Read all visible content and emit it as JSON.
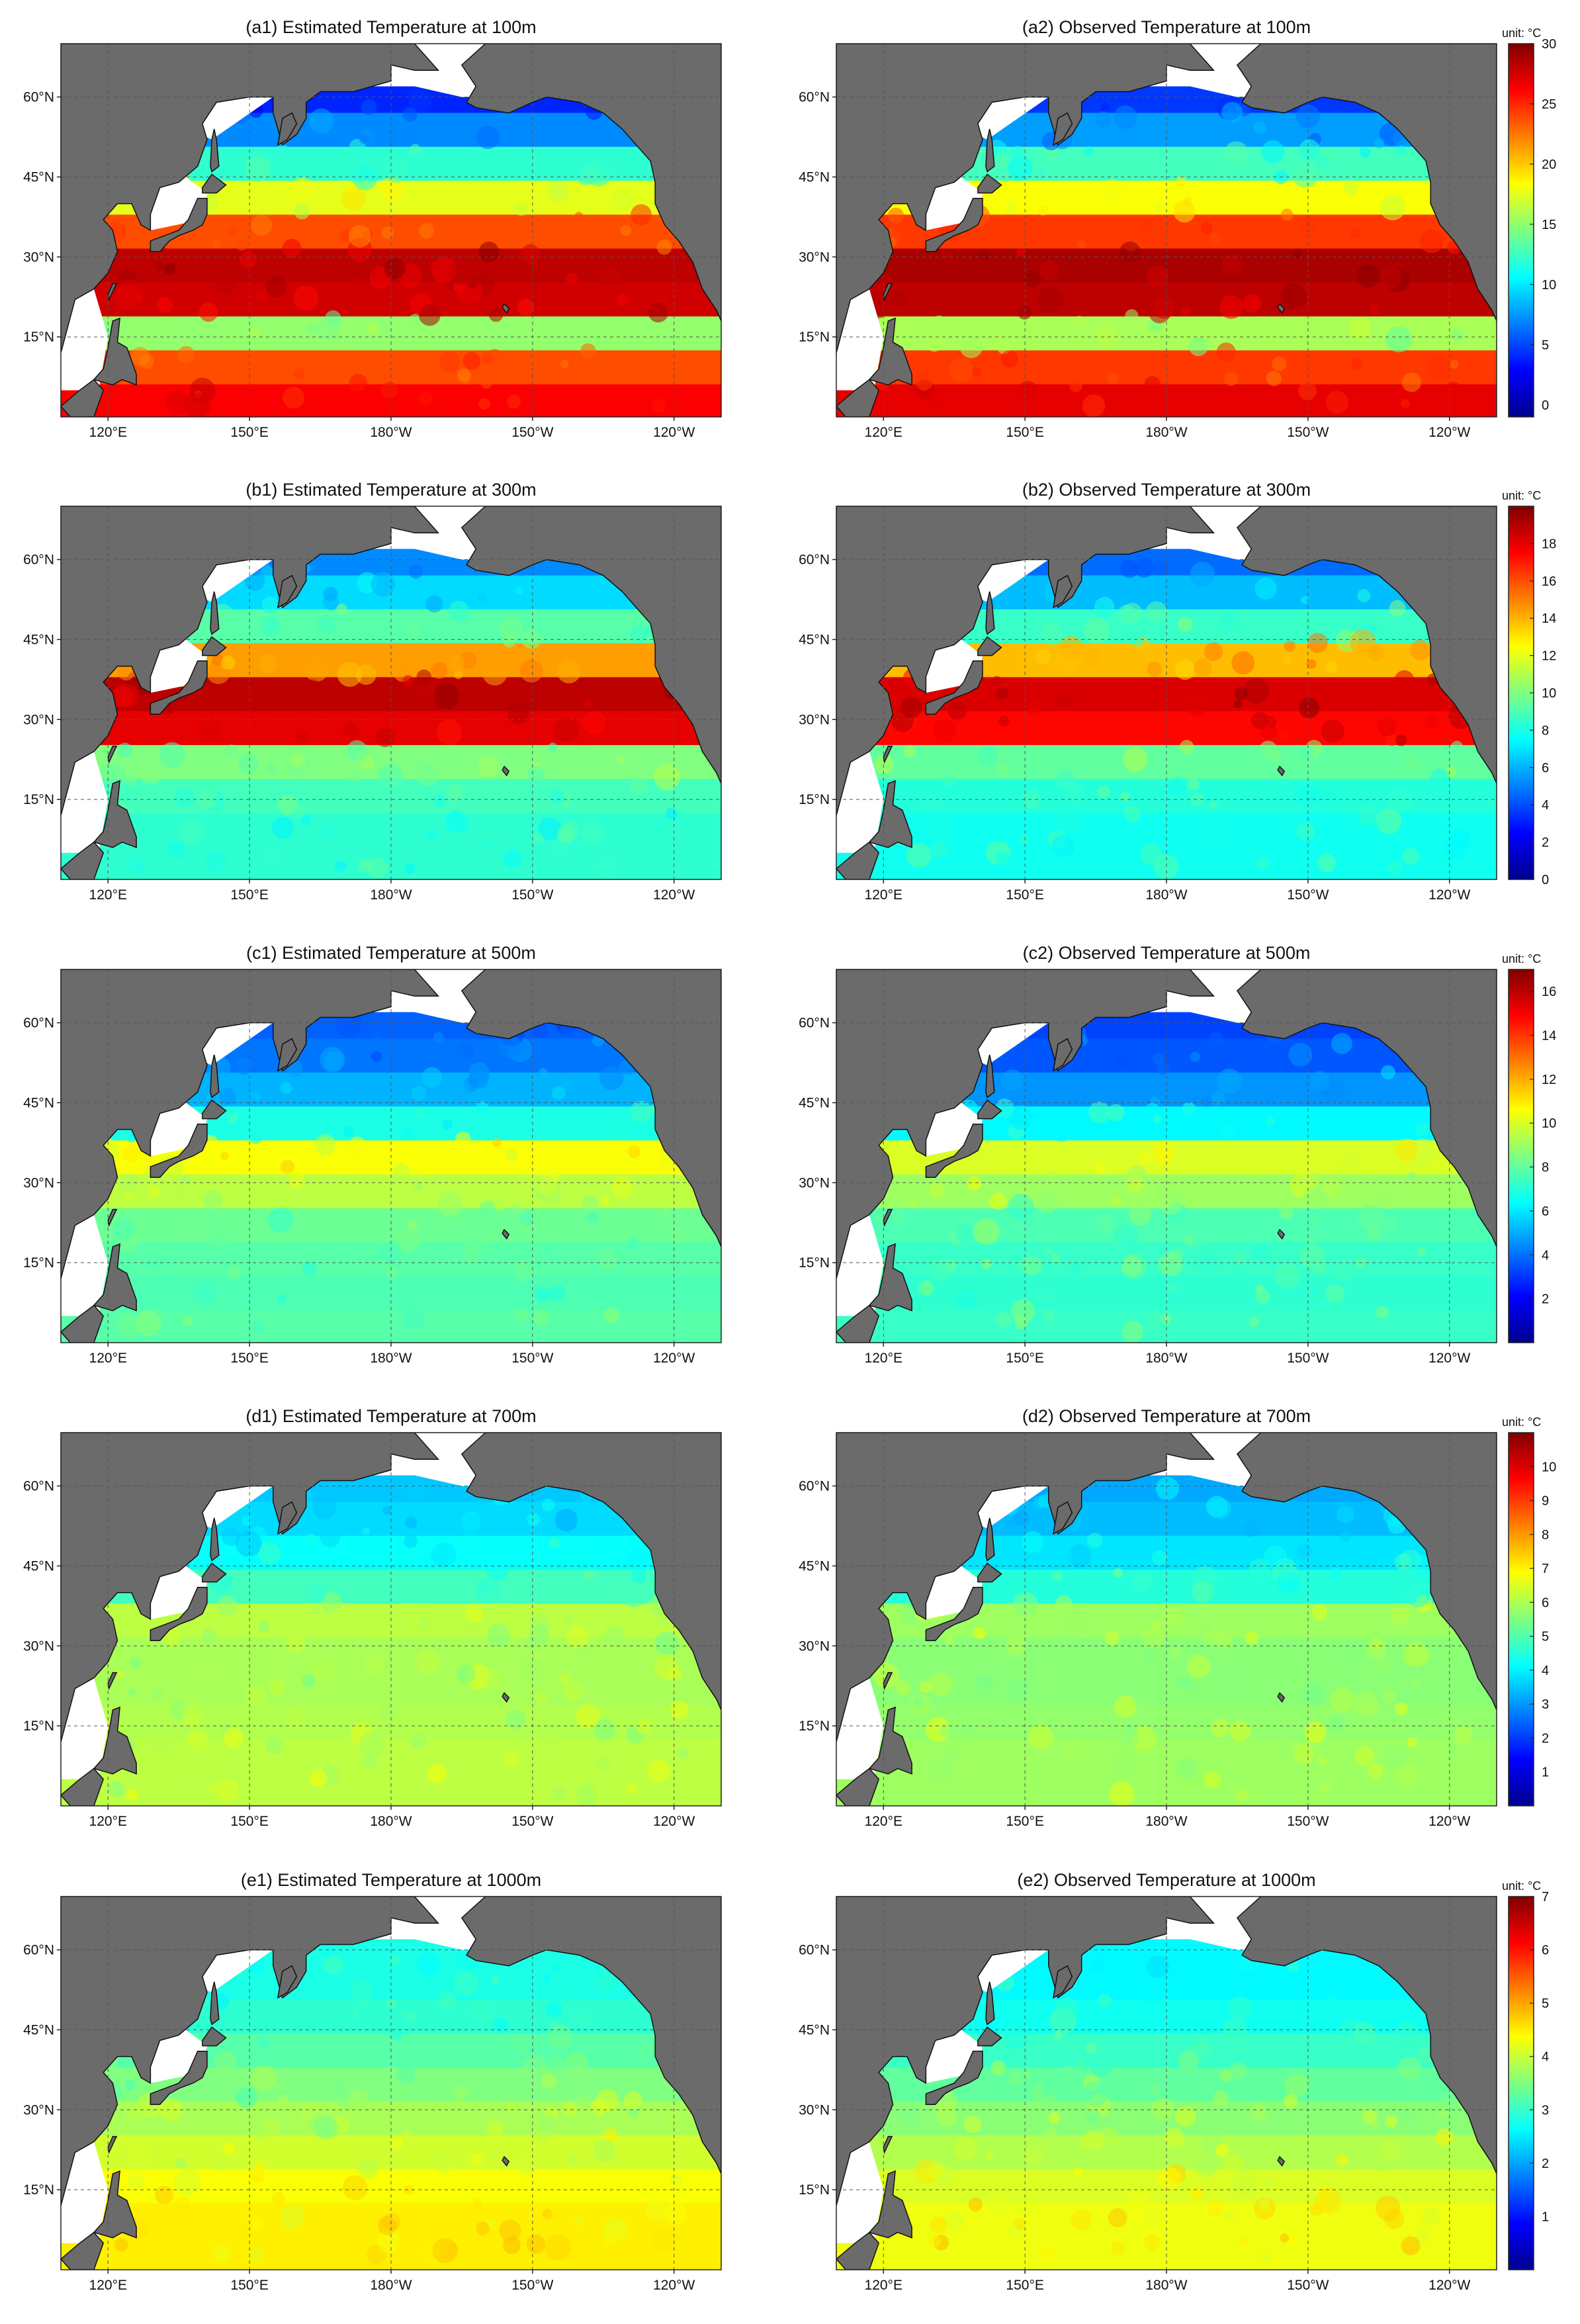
{
  "figure": {
    "colormap": [
      "#00008f",
      "#0000ff",
      "#0080ff",
      "#00ffff",
      "#80ff80",
      "#ffff00",
      "#ff8000",
      "#ff0000",
      "#800000"
    ],
    "colors": {
      "land": "#6b6b6b",
      "coastline": "#111111",
      "unmapped_water": "#ffffff",
      "grid": "#555555"
    },
    "lon_ticks": [
      "120°E",
      "150°E",
      "180°W",
      "150°W",
      "120°W"
    ],
    "lat_ticks": [
      "60°N",
      "45°N",
      "30°N",
      "15°N"
    ],
    "colorbar_unit": "unit: °C"
  },
  "rows": [
    {
      "depth": "100m",
      "estimated_title": "(a1) Estimated Temperature at 100m",
      "observed_title": "(a2) Observed Temperature at 100m",
      "vmin": -1,
      "vmax": 30,
      "colorbar_ticks": [
        "30",
        "25",
        "20",
        "15",
        "10",
        "5",
        "0"
      ]
    },
    {
      "depth": "300m",
      "estimated_title": "(b1) Estimated Temperature at 300m",
      "observed_title": "(b2) Observed Temperature at 300m",
      "vmin": 0,
      "vmax": 20,
      "colorbar_ticks": [
        "18",
        "16",
        "14",
        "12",
        "10",
        "8",
        "6",
        "4",
        "2",
        "0"
      ]
    },
    {
      "depth": "500m",
      "estimated_title": "(c1) Estimated Temperature at 500m",
      "observed_title": "(c2) Observed Temperature at 500m",
      "vmin": 0,
      "vmax": 17,
      "colorbar_ticks": [
        "16",
        "14",
        "12",
        "10",
        "8",
        "6",
        "4",
        "2"
      ]
    },
    {
      "depth": "700m",
      "estimated_title": "(d1) Estimated Temperature at 700m",
      "observed_title": "(d2) Observed Temperature at 700m",
      "vmin": 0,
      "vmax": 11,
      "colorbar_ticks": [
        "10",
        "9",
        "8",
        "7",
        "6",
        "5",
        "4",
        "3",
        "2",
        "1"
      ]
    },
    {
      "depth": "1000m",
      "estimated_title": "(e1) Estimated Temperature at 1000m",
      "observed_title": "(e2) Observed Temperature at 1000m",
      "vmin": 0,
      "vmax": 7,
      "colorbar_ticks": [
        "7",
        "6",
        "5",
        "4",
        "3",
        "2",
        "1"
      ]
    }
  ]
}
